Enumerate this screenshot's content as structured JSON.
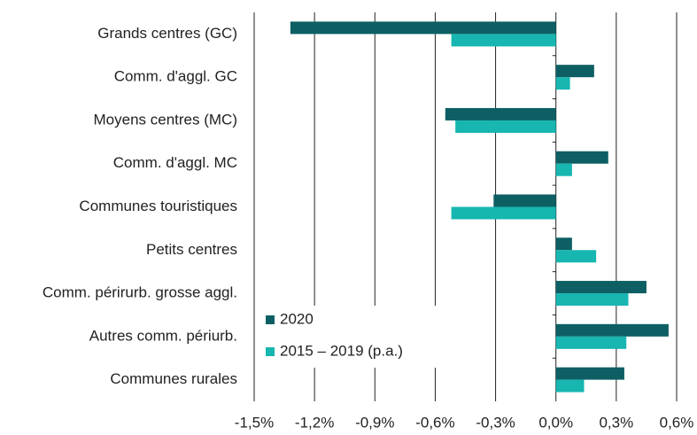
{
  "chart_data": {
    "type": "hbar",
    "categories": [
      "Grands centres (GC)",
      "Comm. d'aggl. GC",
      "Moyens centres (MC)",
      "Comm. d'aggl. MC",
      "Communes touristiques",
      "Petits centres",
      "Comm. périrurb. grosse aggl.",
      "Autres comm. périurb.",
      "Communes rurales"
    ],
    "series": [
      {
        "name": "2020",
        "color": "#0d5f63",
        "values": [
          -1.32,
          0.19,
          -0.55,
          0.26,
          -0.31,
          0.08,
          0.45,
          0.56,
          0.34
        ]
      },
      {
        "name": "2015 – 2019 (p.a.)",
        "color": "#17b6b0",
        "values": [
          -0.52,
          0.07,
          -0.5,
          0.08,
          -0.52,
          0.2,
          0.36,
          0.35,
          0.14
        ]
      }
    ],
    "xlim": [
      -1.5,
      0.6
    ],
    "xticks": [
      {
        "value": -1.5,
        "label": "-1,5%"
      },
      {
        "value": -1.2,
        "label": "-1,2%"
      },
      {
        "value": -0.9,
        "label": "-0,9%"
      },
      {
        "value": -0.6,
        "label": "-0,6%"
      },
      {
        "value": -0.3,
        "label": "-0,3%"
      },
      {
        "value": 0,
        "label": "0,0%"
      },
      {
        "value": 0.3,
        "label": "0,3%"
      },
      {
        "value": 0.6,
        "label": "0,6%"
      }
    ],
    "grid": true,
    "legend": "lower left"
  }
}
